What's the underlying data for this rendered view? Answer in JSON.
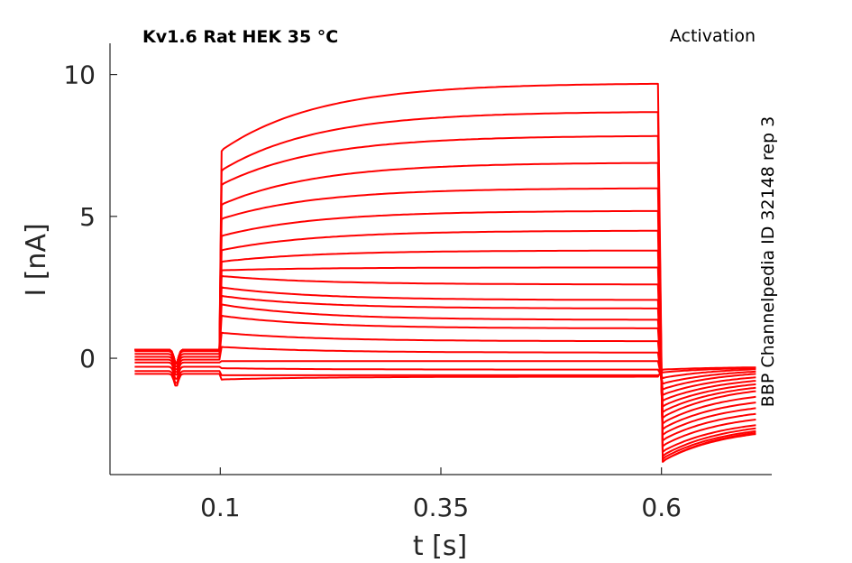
{
  "chart_data": {
    "type": "line",
    "title": "Kv1.6  Rat  HEK  35 °C",
    "subtitle": "Activation",
    "annotation": "BBP Channelpedia ID 32148 rep 3",
    "xlabel": "t [s]",
    "ylabel": "I [nA]",
    "xlim": [
      -0.025,
      0.725
    ],
    "ylim": [
      -4.1,
      11.1
    ],
    "xticks": [
      0.1,
      0.35,
      0.6
    ],
    "xtick_labels": [
      "0.1",
      "0.35",
      "0.6"
    ],
    "yticks": [
      0,
      5,
      10
    ],
    "ytick_labels": [
      "0",
      "5",
      "10"
    ],
    "grid": false,
    "line_color": "#ff0000",
    "protocol": {
      "t_start": 0.003,
      "step_on": 0.1,
      "step_off": 0.6,
      "t_end": 0.708
    },
    "series": [
      {
        "hold": -0.55,
        "peak": -0.75,
        "steady": -0.65,
        "tail_min": -0.4,
        "tail_end": -0.3
      },
      {
        "hold": -0.45,
        "peak": -0.6,
        "steady": -0.6,
        "tail_min": -0.5,
        "tail_end": -0.3
      },
      {
        "hold": -0.3,
        "peak": -0.35,
        "steady": -0.4,
        "tail_min": -0.7,
        "tail_end": -0.3
      },
      {
        "hold": -0.15,
        "peak": -0.1,
        "steady": -0.1,
        "tail_min": -0.9,
        "tail_end": -0.35
      },
      {
        "hold": -0.05,
        "peak": 0.4,
        "steady": 0.2,
        "tail_min": -1.1,
        "tail_end": -0.4
      },
      {
        "hold": 0.05,
        "peak": 0.9,
        "steady": 0.6,
        "tail_min": -1.3,
        "tail_end": -0.5
      },
      {
        "hold": 0.15,
        "peak": 1.5,
        "steady": 1.05,
        "tail_min": -1.5,
        "tail_end": -0.6
      },
      {
        "hold": 0.25,
        "peak": 1.9,
        "steady": 1.35,
        "tail_min": -1.7,
        "tail_end": -0.7
      },
      {
        "hold": 0.3,
        "peak": 2.2,
        "steady": 1.75,
        "tail_min": -1.9,
        "tail_end": -0.8
      },
      {
        "hold": 0.3,
        "peak": 2.5,
        "steady": 2.05,
        "tail_min": -2.1,
        "tail_end": -0.9
      },
      {
        "hold": 0.3,
        "peak": 2.9,
        "steady": 2.6,
        "tail_min": -2.3,
        "tail_end": -1.1
      },
      {
        "hold": 0.3,
        "peak": 3.1,
        "steady": 3.2,
        "tail_min": -2.5,
        "tail_end": -1.3
      },
      {
        "hold": 0.3,
        "peak": 3.4,
        "steady": 3.8,
        "tail_min": -2.7,
        "tail_end": -1.5
      },
      {
        "hold": 0.3,
        "peak": 3.8,
        "steady": 4.5,
        "tail_min": -2.9,
        "tail_end": -1.7
      },
      {
        "hold": 0.3,
        "peak": 4.3,
        "steady": 5.2,
        "tail_min": -3.1,
        "tail_end": -1.9
      },
      {
        "hold": 0.3,
        "peak": 4.9,
        "steady": 6.0,
        "tail_min": -3.3,
        "tail_end": -2.1
      },
      {
        "hold": 0.3,
        "peak": 5.4,
        "steady": 6.9,
        "tail_min": -3.45,
        "tail_end": -2.2
      },
      {
        "hold": 0.3,
        "peak": 6.1,
        "steady": 7.85,
        "tail_min": -3.55,
        "tail_end": -2.3
      },
      {
        "hold": 0.3,
        "peak": 6.6,
        "steady": 8.7,
        "tail_min": -3.65,
        "tail_end": -2.35
      },
      {
        "hold": 0.3,
        "peak": 7.3,
        "steady": 9.7,
        "tail_min": -3.65,
        "tail_end": -2.4
      }
    ]
  }
}
